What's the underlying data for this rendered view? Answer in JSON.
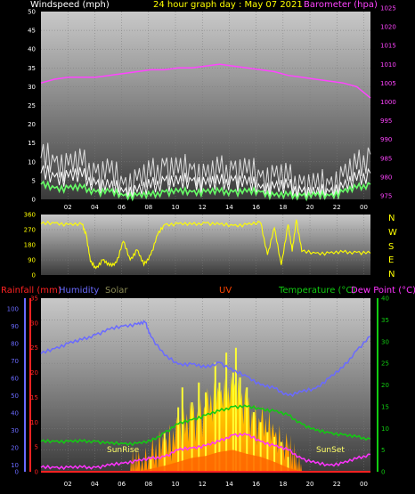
{
  "header": {
    "windspeed_label": "Windspeed (mph)",
    "title": "24 hour graph day : May 07 2021",
    "barometer_label": "Barometer (hpa)"
  },
  "legend": {
    "rainfall": "Rainfall (mm)",
    "humidity": "Humidity",
    "solar": "Solar",
    "uv": "UV",
    "temperature": "Temperature (°C)",
    "dewpoint": "Dew Point (°C)",
    "sunrise": "SunRise",
    "sunset": "SunSet"
  },
  "compass": [
    "N",
    "W",
    "S",
    "E",
    "N"
  ],
  "colors": {
    "windspeed": "#ffffff",
    "windgust": "#dddddd",
    "wind_avg": "#66ff66",
    "barometer": "#ff44ff",
    "direction": "#ffff00",
    "humidity": "#6a6aff",
    "temperature": "#11cc11",
    "dewpoint": "#ff33ff",
    "solar": "#ffcc00",
    "uv": "#ff4400",
    "rainfall": "#ff2222"
  },
  "chart_data": [
    {
      "type": "line",
      "name": "wind-baro",
      "x_tick_labels": [
        "02",
        "04",
        "06",
        "08",
        "10",
        "12",
        "14",
        "16",
        "18",
        "20",
        "22",
        "00"
      ],
      "y_left_ticks": [
        "0",
        "5",
        "10",
        "15",
        "20",
        "25",
        "30",
        "35",
        "40",
        "45",
        "50"
      ],
      "y_right_ticks": [
        "975",
        "980",
        "985",
        "990",
        "995",
        "1000",
        "1005",
        "1010",
        "1015",
        "1020",
        "1025"
      ],
      "ylim_left": [
        0,
        50
      ],
      "ylim_right": [
        975,
        1025
      ],
      "xlim": [
        0,
        24
      ],
      "series": [
        {
          "key": "windgust",
          "axis": "left",
          "x": [
            0,
            1,
            2,
            3,
            4,
            5,
            6,
            7,
            8,
            9,
            10,
            11,
            12,
            13,
            14,
            15,
            16,
            17,
            18,
            19,
            20,
            21,
            22,
            23,
            24
          ],
          "values": [
            11,
            10,
            9,
            9,
            7,
            7,
            4,
            5,
            6,
            9,
            7,
            8,
            6,
            7,
            8,
            7,
            6,
            6,
            5,
            4,
            3,
            4,
            6,
            8,
            12
          ]
        },
        {
          "key": "windspeed",
          "axis": "left",
          "x": [
            0,
            1,
            2,
            3,
            4,
            5,
            6,
            7,
            8,
            9,
            10,
            11,
            12,
            13,
            14,
            15,
            16,
            17,
            18,
            19,
            20,
            21,
            22,
            23,
            24
          ],
          "values": [
            7,
            6,
            6,
            6,
            4,
            3,
            2,
            2,
            3,
            5,
            4,
            5,
            4,
            4,
            5,
            4,
            3,
            3,
            3,
            2,
            1,
            2,
            3,
            5,
            7
          ]
        },
        {
          "key": "wind_avg",
          "axis": "left",
          "x": [
            0,
            1,
            2,
            3,
            4,
            5,
            6,
            7,
            8,
            9,
            10,
            11,
            12,
            13,
            14,
            15,
            16,
            17,
            18,
            19,
            20,
            21,
            22,
            23,
            24
          ],
          "values": [
            4,
            3,
            3,
            3,
            2,
            2,
            1,
            1,
            1,
            2,
            2,
            2,
            2,
            2,
            2,
            2,
            2,
            1,
            1,
            1,
            1,
            1,
            2,
            3,
            4
          ]
        },
        {
          "key": "barometer",
          "axis": "right",
          "x": [
            0,
            1,
            2,
            3,
            4,
            5,
            6,
            7,
            8,
            9,
            10,
            11,
            12,
            13,
            14,
            15,
            16,
            17,
            18,
            19,
            20,
            21,
            22,
            23,
            24
          ],
          "values": [
            1006,
            1007,
            1007.5,
            1007.5,
            1007.5,
            1008,
            1008.5,
            1009,
            1009.5,
            1009.5,
            1010,
            1010,
            1010.5,
            1011,
            1010.5,
            1010,
            1009.5,
            1009,
            1008,
            1007.5,
            1007,
            1006.5,
            1006,
            1005,
            1002
          ]
        }
      ]
    },
    {
      "type": "line",
      "name": "wind-direction",
      "y_ticks": [
        "0",
        "90",
        "180",
        "270",
        "360"
      ],
      "ylim": [
        0,
        360
      ],
      "xlim": [
        0,
        24
      ],
      "series": [
        {
          "key": "direction",
          "x": [
            0,
            1,
            2,
            3,
            3.3,
            3.6,
            4,
            4.5,
            5,
            5.5,
            6,
            6.5,
            7,
            7.5,
            8,
            8.5,
            9,
            10,
            11,
            12,
            13,
            14,
            15,
            16,
            16.5,
            17,
            17.5,
            18,
            18.3,
            18.6,
            19,
            20,
            21,
            22,
            23,
            24
          ],
          "values": [
            305,
            310,
            300,
            300,
            240,
            80,
            40,
            90,
            55,
            75,
            200,
            90,
            150,
            60,
            120,
            240,
            300,
            305,
            300,
            310,
            300,
            295,
            300,
            310,
            120,
            280,
            60,
            300,
            140,
            330,
            140,
            130,
            130,
            135,
            135,
            130
          ]
        }
      ]
    },
    {
      "type": "line",
      "name": "temp-hum-solar",
      "y_left_ticks": [
        "0",
        "5",
        "10",
        "15",
        "20",
        "25",
        "30",
        "35"
      ],
      "y_hum_ticks": [
        "0",
        "10",
        "20",
        "30",
        "40",
        "50",
        "60",
        "70",
        "80",
        "90",
        "100"
      ],
      "y_right_ticks": [
        "0",
        "5",
        "10",
        "15",
        "20",
        "25",
        "30",
        "35",
        "40"
      ],
      "ylim_left": [
        0,
        35
      ],
      "ylim_hum": [
        0,
        100
      ],
      "ylim_right": [
        0,
        40
      ],
      "xlim": [
        0,
        24
      ],
      "series": [
        {
          "key": "humidity",
          "axis": "hum",
          "x": [
            0,
            1,
            2,
            3,
            4,
            5,
            6,
            7,
            7.6,
            8,
            9,
            10,
            11,
            12,
            13,
            14,
            15,
            16,
            17,
            18,
            19,
            20,
            21,
            22,
            23,
            24
          ],
          "values": [
            68,
            71,
            74,
            76,
            79,
            82,
            84,
            85,
            86,
            78,
            67,
            62,
            62,
            60,
            63,
            58,
            55,
            50,
            48,
            44,
            46,
            48,
            54,
            60,
            70,
            78
          ]
        },
        {
          "key": "temperature",
          "axis": "right",
          "x": [
            0,
            1,
            2,
            3,
            4,
            5,
            6,
            7,
            8,
            9,
            10,
            11,
            12,
            13,
            14,
            15,
            16,
            17,
            18,
            19,
            20,
            21,
            22,
            23,
            24
          ],
          "values": [
            7,
            7,
            7,
            7,
            7,
            6.5,
            6.5,
            6.5,
            7,
            9,
            11,
            12,
            13,
            14,
            15,
            15,
            14.5,
            14,
            13,
            11,
            9.5,
            9,
            8.5,
            8,
            7.5
          ]
        },
        {
          "key": "dewpoint",
          "axis": "right",
          "x": [
            0,
            1,
            2,
            3,
            4,
            5,
            6,
            7,
            8,
            9,
            10,
            11,
            12,
            13,
            14,
            15,
            16,
            17,
            18,
            19,
            20,
            21,
            22,
            23,
            24
          ],
          "values": [
            1,
            1,
            1,
            1,
            1,
            1.5,
            2,
            2.5,
            3,
            3.5,
            5,
            5.5,
            6,
            7,
            8.5,
            8.5,
            7,
            6,
            5,
            3,
            2,
            1.5,
            2,
            3,
            4
          ]
        },
        {
          "key": "solar",
          "axis": "left",
          "x": [
            6.5,
            7,
            8,
            9,
            10,
            11,
            12,
            13,
            14,
            15,
            16,
            17,
            18,
            18.5,
            19
          ],
          "values": [
            0,
            0.5,
            2,
            5,
            8,
            10,
            12,
            15,
            16,
            12,
            9,
            7,
            4,
            1,
            0
          ]
        },
        {
          "key": "solar_peak",
          "axis": "left",
          "x": [
            8,
            9,
            10,
            10.3,
            11,
            11.5,
            12,
            12.7,
            13,
            13.5,
            14,
            14.2,
            14.5,
            15,
            15.5,
            16,
            16.5,
            17,
            17.5,
            18
          ],
          "values": [
            3,
            8,
            13,
            17,
            14,
            18,
            16,
            22,
            18,
            24,
            20,
            25,
            19,
            17,
            12,
            10,
            8,
            7,
            6,
            3
          ]
        },
        {
          "key": "uv",
          "axis": "left",
          "x": [
            7,
            8,
            9,
            10,
            11,
            12,
            13,
            14,
            15,
            16,
            17,
            18,
            19
          ],
          "values": [
            0,
            0.3,
            0.6,
            1.0,
            1.4,
            1.6,
            2.0,
            2.2,
            1.8,
            1.5,
            1.0,
            0.4,
            0
          ]
        },
        {
          "key": "rainfall",
          "axis": "left",
          "x": [
            0,
            24
          ],
          "values": [
            0,
            0
          ]
        }
      ]
    }
  ]
}
